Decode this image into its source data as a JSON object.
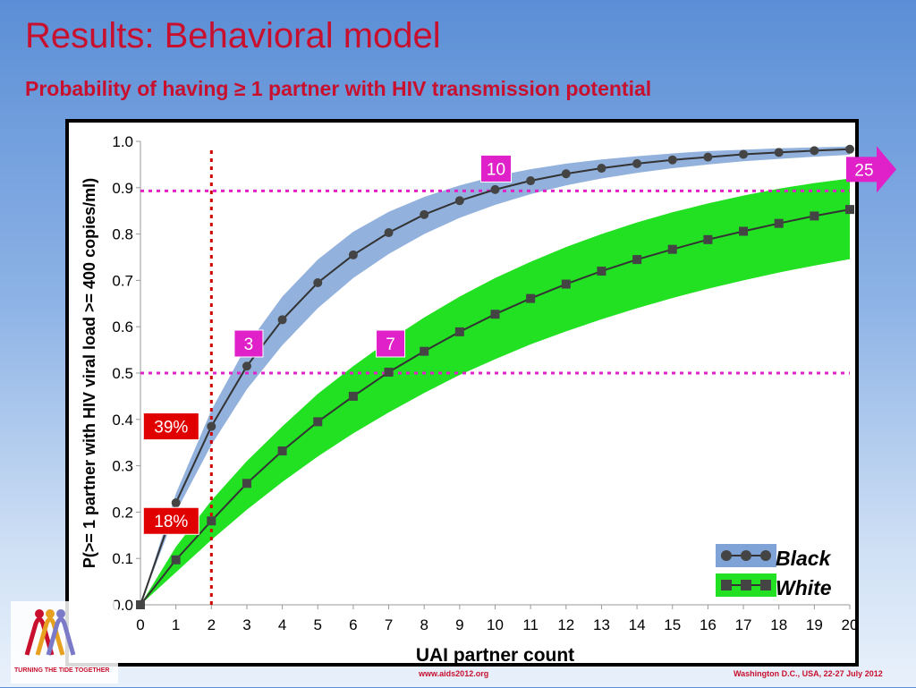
{
  "slide": {
    "title": "Results: Behavioral model",
    "subtitle": "Probability of having ≥ 1 partner with HIV transmission potential",
    "footer_center": "www.aids2012.org",
    "footer_right": "Washington D.C., USA, 22-27 July 2012",
    "logo_text": "TURNING THE TIDE TOGETHER"
  },
  "colors": {
    "title": "#c8102e",
    "black_band": "#7fa3d6",
    "white_band": "#22e022",
    "line": "#333333",
    "ref_line": "#e020c8",
    "vert_line": "#d00000",
    "pink_label": "#e020c8",
    "red_label": "#e00000"
  },
  "chart_data": {
    "type": "line",
    "xlabel": "UAI partner count",
    "ylabel": "P(>= 1 partner with HIV viral load >= 400 copies/ml)",
    "xlim": [
      0,
      20
    ],
    "ylim": [
      0,
      1.0
    ],
    "x": [
      0,
      1,
      2,
      3,
      4,
      5,
      6,
      7,
      8,
      9,
      10,
      11,
      12,
      13,
      14,
      15,
      16,
      17,
      18,
      19,
      20
    ],
    "xticks": [
      "0",
      "1",
      "2",
      "3",
      "4",
      "5",
      "6",
      "7",
      "8",
      "9",
      "10",
      "11",
      "12",
      "13",
      "14",
      "15",
      "16",
      "17",
      "18",
      "19",
      "20"
    ],
    "yticks": [
      "0.0",
      "0.1",
      "0.2",
      "0.3",
      "0.4",
      "0.5",
      "0.6",
      "0.7",
      "0.8",
      "0.9",
      "1.0"
    ],
    "series": [
      {
        "name": "Black",
        "marker": "circle",
        "values": [
          0.0,
          0.22,
          0.385,
          0.515,
          0.615,
          0.695,
          0.755,
          0.803,
          0.842,
          0.872,
          0.896,
          0.915,
          0.93,
          0.942,
          0.952,
          0.96,
          0.966,
          0.972,
          0.976,
          0.98,
          0.983
        ],
        "lower": [
          0.0,
          0.2,
          0.345,
          0.465,
          0.56,
          0.64,
          0.705,
          0.757,
          0.8,
          0.835,
          0.863,
          0.886,
          0.905,
          0.92,
          0.932,
          0.942,
          0.95,
          0.957,
          0.962,
          0.967,
          0.971
        ],
        "upper": [
          0.0,
          0.24,
          0.42,
          0.56,
          0.665,
          0.745,
          0.805,
          0.848,
          0.88,
          0.905,
          0.925,
          0.94,
          0.952,
          0.961,
          0.968,
          0.974,
          0.979,
          0.982,
          0.985,
          0.987,
          0.989
        ]
      },
      {
        "name": "White",
        "marker": "square",
        "values": [
          0.0,
          0.097,
          0.181,
          0.262,
          0.332,
          0.395,
          0.45,
          0.502,
          0.547,
          0.589,
          0.627,
          0.661,
          0.692,
          0.72,
          0.745,
          0.767,
          0.788,
          0.806,
          0.823,
          0.839,
          0.853
        ],
        "lower": [
          0.0,
          0.07,
          0.14,
          0.205,
          0.265,
          0.32,
          0.37,
          0.415,
          0.457,
          0.496,
          0.53,
          0.562,
          0.59,
          0.616,
          0.64,
          0.662,
          0.682,
          0.7,
          0.717,
          0.732,
          0.746
        ],
        "upper": [
          0.0,
          0.125,
          0.225,
          0.31,
          0.385,
          0.455,
          0.515,
          0.57,
          0.62,
          0.665,
          0.705,
          0.74,
          0.772,
          0.8,
          0.825,
          0.847,
          0.866,
          0.883,
          0.898,
          0.91,
          0.92
        ]
      }
    ],
    "reference_lines": {
      "horizontal": [
        0.5,
        0.893
      ],
      "vertical": [
        2
      ]
    },
    "annotations": [
      {
        "text": "39%",
        "style": "red",
        "x": 2,
        "y": 0.385
      },
      {
        "text": "18%",
        "style": "red",
        "x": 2,
        "y": 0.181
      },
      {
        "text": "3",
        "style": "pink",
        "x": 3,
        "y": 0.5
      },
      {
        "text": "7",
        "style": "pink",
        "x": 7,
        "y": 0.5
      },
      {
        "text": "10",
        "style": "pink",
        "x": 10,
        "y": 0.893
      },
      {
        "text": "25",
        "style": "pink-arrow",
        "x": 20,
        "y": 0.893
      }
    ],
    "legend": {
      "position": "bottom-right",
      "entries": [
        "Black",
        "White"
      ]
    }
  }
}
